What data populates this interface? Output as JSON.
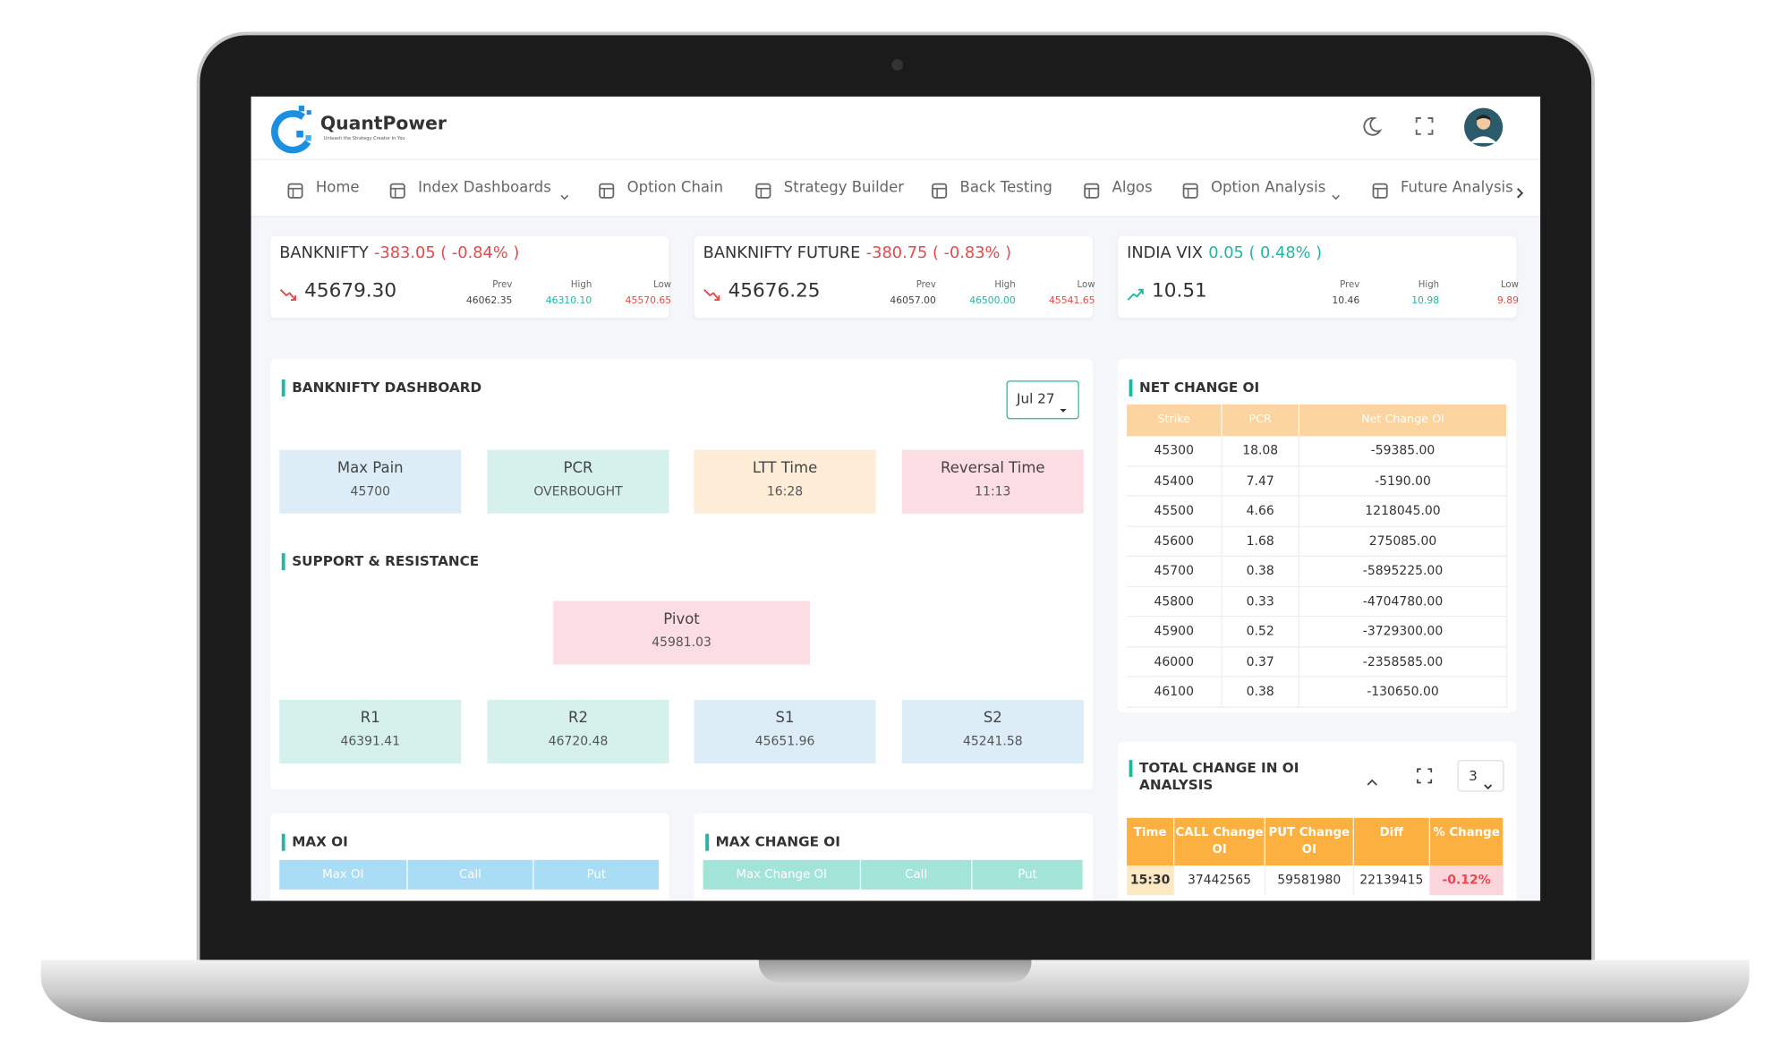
{
  "header": {
    "brand": "QuantPower",
    "tagline": "Unleash the Strategy Creator in You"
  },
  "nav": [
    "Home",
    "Index Dashboards",
    "Option Chain",
    "Strategy Builder",
    "Back Testing",
    "Algos",
    "Option Analysis",
    "Future Analysis"
  ],
  "tickers": [
    {
      "name": "BANKNIFTY",
      "change": "-383.05 ( -0.84% )",
      "price": "45679.30",
      "stats": [
        {
          "label": "Prev",
          "value": "46062.35"
        },
        {
          "label": "High",
          "value": "46310.10"
        },
        {
          "label": "Low",
          "value": "45570.65"
        }
      ]
    },
    {
      "name": "BANKNIFTY FUTURE",
      "change": "-380.75 ( -0.83% )",
      "price": "45676.25",
      "stats": [
        {
          "label": "Prev",
          "value": "46057.00"
        },
        {
          "label": "High",
          "value": "46500.00"
        },
        {
          "label": "Low",
          "value": "45541.65"
        }
      ]
    },
    {
      "name": "INDIA VIX",
      "change": "0.05 ( 0.48% )",
      "price": "10.51",
      "stats": [
        {
          "label": "Prev",
          "value": "10.46"
        },
        {
          "label": "High",
          "value": "10.98"
        },
        {
          "label": "Low",
          "value": "9.89"
        }
      ]
    }
  ],
  "dashboard": {
    "title": "BANKNIFTY DASHBOARD",
    "expiry": "Jul 27",
    "cards": [
      {
        "label": "Max Pain",
        "value": "45700"
      },
      {
        "label": "PCR",
        "value": "OVERBOUGHT"
      },
      {
        "label": "LTT Time",
        "value": "16:28"
      },
      {
        "label": "Reversal Time",
        "value": "11:13"
      }
    ],
    "support_title": "SUPPORT & RESISTANCE",
    "pivot": {
      "label": "Pivot",
      "value": "45981.03"
    },
    "levels": [
      {
        "label": "R1",
        "value": "46391.41"
      },
      {
        "label": "R2",
        "value": "46720.48"
      },
      {
        "label": "S1",
        "value": "45651.96"
      },
      {
        "label": "S2",
        "value": "45241.58"
      }
    ]
  },
  "net_change_oi": {
    "title": "NET CHANGE OI",
    "headers": [
      "Strike",
      "PCR",
      "Net Change OI"
    ],
    "rows": [
      [
        "45300",
        "18.08",
        "-59385.00"
      ],
      [
        "45400",
        "7.47",
        "-5190.00"
      ],
      [
        "45500",
        "4.66",
        "1218045.00"
      ],
      [
        "45600",
        "1.68",
        "275085.00"
      ],
      [
        "45700",
        "0.38",
        "-5895225.00"
      ],
      [
        "45800",
        "0.33",
        "-4704780.00"
      ],
      [
        "45900",
        "0.52",
        "-3729300.00"
      ],
      [
        "46000",
        "0.37",
        "-2358585.00"
      ],
      [
        "46100",
        "0.38",
        "-130650.00"
      ]
    ]
  },
  "total_change_oi": {
    "title": "TOTAL CHANGE IN OI ANALYSIS",
    "select": "3",
    "headers": [
      "Time",
      "CALL Change OI",
      "PUT Change OI",
      "Diff",
      "% Change"
    ],
    "rows": [
      [
        "15:30",
        "37442565",
        "59581980",
        "22139415",
        "-0.12%"
      ]
    ]
  },
  "max_oi": {
    "title": "MAX OI",
    "headers": [
      "Max OI",
      "Call",
      "Put"
    ]
  },
  "max_change_oi": {
    "title": "MAX CHANGE OI",
    "headers": [
      "Max Change OI",
      "Call",
      "Put"
    ]
  }
}
